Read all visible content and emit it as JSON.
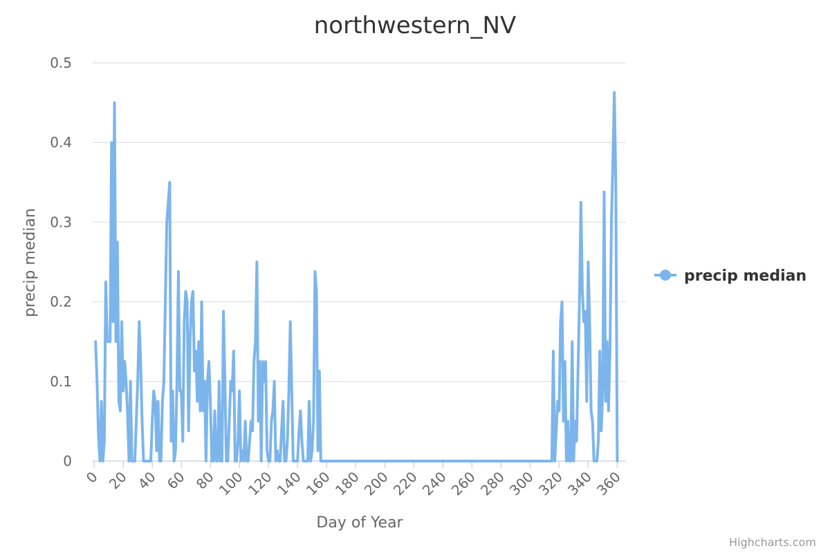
{
  "chart_data": {
    "type": "line",
    "title": "northwestern_NV",
    "xlabel": "Day of Year",
    "ylabel": "precip median",
    "xlim": [
      -1,
      366
    ],
    "ylim": [
      0,
      0.5
    ],
    "x_ticks": [
      0,
      20,
      40,
      60,
      80,
      100,
      120,
      140,
      160,
      180,
      200,
      220,
      240,
      260,
      280,
      300,
      320,
      340,
      360
    ],
    "y_ticks": [
      0,
      0.1,
      0.2,
      0.3,
      0.4,
      0.5
    ],
    "y_tick_labels": [
      "0",
      "0.1",
      "0.2",
      "0.3",
      "0.4",
      "0.5"
    ],
    "legend": {
      "position": "right"
    },
    "grid": {
      "y": true,
      "x": false
    },
    "color": "#7cb5ec",
    "series": [
      {
        "name": "precip median",
        "points": [
          [
            1,
            0.15
          ],
          [
            2,
            0.1
          ],
          [
            3,
            0.03
          ],
          [
            4,
            0.0
          ],
          [
            5,
            0.075
          ],
          [
            6,
            0.0
          ],
          [
            7,
            0.025
          ],
          [
            8,
            0.225
          ],
          [
            9,
            0.15
          ],
          [
            10,
            0.15
          ],
          [
            11,
            0.15
          ],
          [
            12,
            0.4
          ],
          [
            13,
            0.175
          ],
          [
            14,
            0.45
          ],
          [
            15,
            0.15
          ],
          [
            16,
            0.275
          ],
          [
            17,
            0.075
          ],
          [
            18,
            0.063
          ],
          [
            19,
            0.175
          ],
          [
            20,
            0.088
          ],
          [
            21,
            0.125
          ],
          [
            22,
            0.1
          ],
          [
            23,
            0.06
          ],
          [
            24,
            0.0
          ],
          [
            25,
            0.1
          ],
          [
            26,
            0.0
          ],
          [
            27,
            0.0
          ],
          [
            28,
            0.0
          ],
          [
            29,
            0.05
          ],
          [
            30,
            0.1
          ],
          [
            31,
            0.175
          ],
          [
            32,
            0.125
          ],
          [
            33,
            0.05
          ],
          [
            34,
            0.0
          ],
          [
            35,
            0.0
          ],
          [
            36,
            0.0
          ],
          [
            37,
            0.0
          ],
          [
            38,
            0.0
          ],
          [
            39,
            0.0
          ],
          [
            40,
            0.05
          ],
          [
            41,
            0.088
          ],
          [
            42,
            0.075
          ],
          [
            43,
            0.013
          ],
          [
            44,
            0.075
          ],
          [
            45,
            0.0
          ],
          [
            46,
            0.0
          ],
          [
            47,
            0.075
          ],
          [
            48,
            0.1
          ],
          [
            49,
            0.2
          ],
          [
            50,
            0.3
          ],
          [
            51,
            0.325
          ],
          [
            52,
            0.35
          ],
          [
            53,
            0.025
          ],
          [
            54,
            0.088
          ],
          [
            55,
            0.0
          ],
          [
            56,
            0.013
          ],
          [
            57,
            0.1
          ],
          [
            58,
            0.238
          ],
          [
            59,
            0.088
          ],
          [
            60,
            0.088
          ],
          [
            61,
            0.025
          ],
          [
            62,
            0.175
          ],
          [
            63,
            0.213
          ],
          [
            64,
            0.2
          ],
          [
            65,
            0.038
          ],
          [
            66,
            0.15
          ],
          [
            67,
            0.2
          ],
          [
            68,
            0.213
          ],
          [
            69,
            0.113
          ],
          [
            70,
            0.138
          ],
          [
            71,
            0.075
          ],
          [
            72,
            0.15
          ],
          [
            73,
            0.063
          ],
          [
            74,
            0.2
          ],
          [
            75,
            0.063
          ],
          [
            76,
            0.1
          ],
          [
            77,
            0.0
          ],
          [
            78,
            0.1
          ],
          [
            79,
            0.125
          ],
          [
            80,
            0.075
          ],
          [
            81,
            0.0
          ],
          [
            82,
            0.0
          ],
          [
            83,
            0.063
          ],
          [
            84,
            0.0
          ],
          [
            85,
            0.0
          ],
          [
            86,
            0.1
          ],
          [
            87,
            0.0
          ],
          [
            88,
            0.0
          ],
          [
            89,
            0.188
          ],
          [
            90,
            0.1
          ],
          [
            91,
            0.0
          ],
          [
            92,
            0.0
          ],
          [
            93,
            0.05
          ],
          [
            94,
            0.1
          ],
          [
            95,
            0.088
          ],
          [
            96,
            0.138
          ],
          [
            97,
            0.0
          ],
          [
            98,
            0.0
          ],
          [
            99,
            0.025
          ],
          [
            100,
            0.088
          ],
          [
            101,
            0.0
          ],
          [
            102,
            0.013
          ],
          [
            103,
            0.0
          ],
          [
            104,
            0.05
          ],
          [
            105,
            0.0
          ],
          [
            106,
            0.0
          ],
          [
            107,
            0.025
          ],
          [
            108,
            0.05
          ],
          [
            109,
            0.038
          ],
          [
            110,
            0.125
          ],
          [
            111,
            0.15
          ],
          [
            112,
            0.25
          ],
          [
            113,
            0.05
          ],
          [
            114,
            0.125
          ],
          [
            115,
            0.0
          ],
          [
            116,
            0.125
          ],
          [
            117,
            0.1
          ],
          [
            118,
            0.125
          ],
          [
            119,
            0.013
          ],
          [
            120,
            0.0
          ],
          [
            121,
            0.0
          ],
          [
            122,
            0.05
          ],
          [
            123,
            0.063
          ],
          [
            124,
            0.1
          ],
          [
            125,
            0.0
          ],
          [
            126,
            0.013
          ],
          [
            127,
            0.0
          ],
          [
            128,
            0.0
          ],
          [
            129,
            0.038
          ],
          [
            130,
            0.075
          ],
          [
            131,
            0.0
          ],
          [
            132,
            0.0
          ],
          [
            133,
            0.025
          ],
          [
            134,
            0.088
          ],
          [
            135,
            0.175
          ],
          [
            136,
            0.088
          ],
          [
            137,
            0.0
          ],
          [
            138,
            0.0
          ],
          [
            139,
            0.0
          ],
          [
            140,
            0.0
          ],
          [
            141,
            0.038
          ],
          [
            142,
            0.063
          ],
          [
            143,
            0.025
          ],
          [
            144,
            0.0
          ],
          [
            145,
            0.0
          ],
          [
            146,
            0.0
          ],
          [
            147,
            0.0
          ],
          [
            148,
            0.075
          ],
          [
            149,
            0.0
          ],
          [
            150,
            0.013
          ],
          [
            151,
            0.05
          ],
          [
            152,
            0.238
          ],
          [
            153,
            0.213
          ],
          [
            154,
            0.013
          ],
          [
            155,
            0.113
          ],
          [
            156,
            0.0
          ],
          [
            157,
            0.0
          ],
          [
            158,
            0.0
          ],
          [
            159,
            0.0
          ],
          [
            160,
            0.0
          ],
          [
            170,
            0.0
          ],
          [
            180,
            0.0
          ],
          [
            200,
            0.0
          ],
          [
            220,
            0.0
          ],
          [
            240,
            0.0
          ],
          [
            260,
            0.0
          ],
          [
            280,
            0.0
          ],
          [
            300,
            0.0
          ],
          [
            310,
            0.0
          ],
          [
            315,
            0.0
          ],
          [
            316,
            0.138
          ],
          [
            317,
            0.0
          ],
          [
            318,
            0.038
          ],
          [
            319,
            0.075
          ],
          [
            320,
            0.063
          ],
          [
            321,
            0.175
          ],
          [
            322,
            0.2
          ],
          [
            323,
            0.05
          ],
          [
            324,
            0.125
          ],
          [
            325,
            0.0
          ],
          [
            326,
            0.05
          ],
          [
            327,
            0.0
          ],
          [
            328,
            0.0
          ],
          [
            329,
            0.15
          ],
          [
            330,
            0.0
          ],
          [
            331,
            0.05
          ],
          [
            332,
            0.025
          ],
          [
            333,
            0.113
          ],
          [
            334,
            0.2
          ],
          [
            335,
            0.325
          ],
          [
            336,
            0.213
          ],
          [
            337,
            0.175
          ],
          [
            338,
            0.188
          ],
          [
            339,
            0.075
          ],
          [
            340,
            0.25
          ],
          [
            341,
            0.175
          ],
          [
            342,
            0.063
          ],
          [
            343,
            0.05
          ],
          [
            344,
            0.0
          ],
          [
            345,
            0.0
          ],
          [
            346,
            0.0
          ],
          [
            347,
            0.025
          ],
          [
            348,
            0.138
          ],
          [
            349,
            0.038
          ],
          [
            350,
            0.088
          ],
          [
            351,
            0.338
          ],
          [
            352,
            0.075
          ],
          [
            353,
            0.15
          ],
          [
            354,
            0.063
          ],
          [
            355,
            0.138
          ],
          [
            356,
            0.3
          ],
          [
            357,
            0.375
          ],
          [
            358,
            0.463
          ],
          [
            359,
            0.35
          ],
          [
            360,
            0.0
          ]
        ]
      }
    ]
  },
  "credits": "Highcharts.com"
}
